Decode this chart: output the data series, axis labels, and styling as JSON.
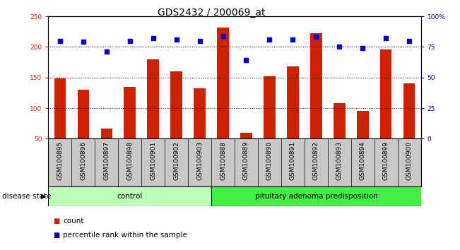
{
  "title": "GDS2432 / 200069_at",
  "categories": [
    "GSM100895",
    "GSM100896",
    "GSM100897",
    "GSM100898",
    "GSM100901",
    "GSM100902",
    "GSM100903",
    "GSM100888",
    "GSM100889",
    "GSM100890",
    "GSM100891",
    "GSM100892",
    "GSM100893",
    "GSM100894",
    "GSM100899",
    "GSM100900"
  ],
  "bar_values": [
    148,
    130,
    67,
    135,
    180,
    160,
    132,
    232,
    60,
    152,
    168,
    222,
    108,
    96,
    196,
    141
  ],
  "percentile_values": [
    80,
    79,
    71,
    80,
    82,
    81,
    80,
    84,
    64,
    81,
    81,
    83,
    75,
    74,
    82,
    80
  ],
  "group_labels": [
    "control",
    "pituitary adenoma predisposition"
  ],
  "group_counts": [
    7,
    9
  ],
  "ylim_left": [
    50,
    250
  ],
  "ylim_right": [
    0,
    100
  ],
  "yticks_left": [
    50,
    100,
    150,
    200,
    250
  ],
  "yticks_right": [
    0,
    25,
    50,
    75,
    100
  ],
  "ytick_labels_right": [
    "0",
    "25",
    "50",
    "75",
    "100%"
  ],
  "bar_color": "#cc2200",
  "scatter_color": "#0000cc",
  "bg_color": "#ffffff",
  "tick_area_color": "#c8c8c8",
  "group_area_color_control": "#bbffbb",
  "group_area_color_pituitary": "#44ee44",
  "legend_items": [
    "count",
    "percentile rank within the sample"
  ],
  "legend_colors": [
    "#cc2200",
    "#0000cc"
  ],
  "xlabel_color": "#cc2200",
  "ylabel_right_color": "#0000cc",
  "disease_state_label": "disease state",
  "bar_width": 0.5,
  "title_fontsize": 10,
  "tick_fontsize": 6.5,
  "label_fontsize": 7.5
}
